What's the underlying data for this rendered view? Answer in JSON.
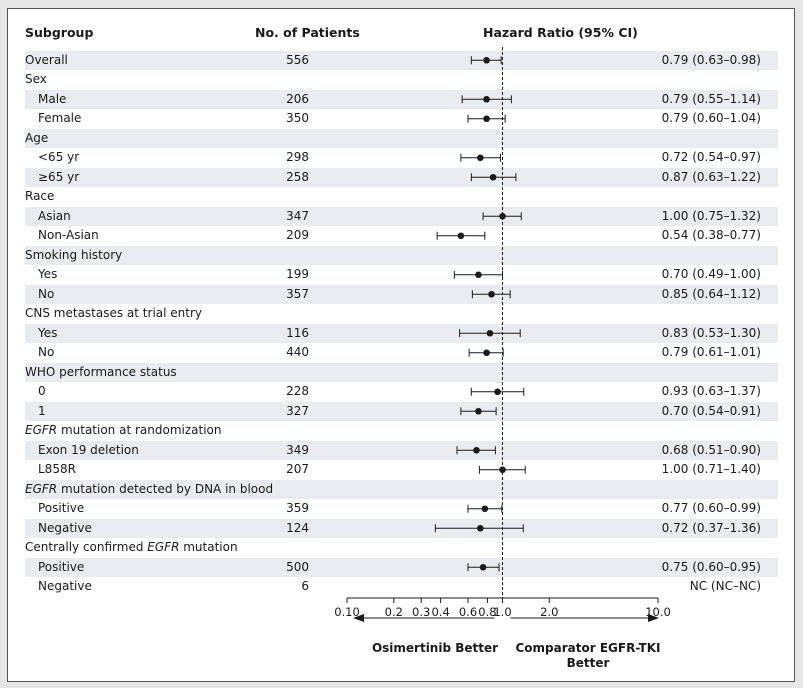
{
  "headers": {
    "subgroup": "Subgroup",
    "patients": "No. of Patients",
    "hazard": "Hazard Ratio (95% CI)"
  },
  "rows": [
    {
      "label": "Overall",
      "indent": false,
      "italic_prefix": "",
      "patients": "556",
      "hr_text": "0.79 (0.63–0.98)",
      "hr": 0.79,
      "lo": 0.63,
      "hi": 0.98,
      "band": true
    },
    {
      "label": "Sex",
      "indent": false,
      "italic_prefix": "",
      "patients": "",
      "hr_text": "",
      "hr": null,
      "lo": null,
      "hi": null,
      "band": false
    },
    {
      "label": "Male",
      "indent": true,
      "italic_prefix": "",
      "patients": "206",
      "hr_text": "0.79 (0.55–1.14)",
      "hr": 0.79,
      "lo": 0.55,
      "hi": 1.14,
      "band": true
    },
    {
      "label": "Female",
      "indent": true,
      "italic_prefix": "",
      "patients": "350",
      "hr_text": "0.79 (0.60–1.04)",
      "hr": 0.79,
      "lo": 0.6,
      "hi": 1.04,
      "band": false
    },
    {
      "label": "Age",
      "indent": false,
      "italic_prefix": "",
      "patients": "",
      "hr_text": "",
      "hr": null,
      "lo": null,
      "hi": null,
      "band": true
    },
    {
      "label": "<65 yr",
      "indent": true,
      "italic_prefix": "",
      "patients": "298",
      "hr_text": "0.72 (0.54–0.97)",
      "hr": 0.72,
      "lo": 0.54,
      "hi": 0.97,
      "band": false
    },
    {
      "label": "≥65 yr",
      "indent": true,
      "italic_prefix": "",
      "patients": "258",
      "hr_text": "0.87 (0.63–1.22)",
      "hr": 0.87,
      "lo": 0.63,
      "hi": 1.22,
      "band": true
    },
    {
      "label": "Race",
      "indent": false,
      "italic_prefix": "",
      "patients": "",
      "hr_text": "",
      "hr": null,
      "lo": null,
      "hi": null,
      "band": false
    },
    {
      "label": "Asian",
      "indent": true,
      "italic_prefix": "",
      "patients": "347",
      "hr_text": "1.00 (0.75–1.32)",
      "hr": 1.0,
      "lo": 0.75,
      "hi": 1.32,
      "band": true
    },
    {
      "label": "Non-Asian",
      "indent": true,
      "italic_prefix": "",
      "patients": "209",
      "hr_text": "0.54 (0.38–0.77)",
      "hr": 0.54,
      "lo": 0.38,
      "hi": 0.77,
      "band": false
    },
    {
      "label": "Smoking history",
      "indent": false,
      "italic_prefix": "",
      "patients": "",
      "hr_text": "",
      "hr": null,
      "lo": null,
      "hi": null,
      "band": true
    },
    {
      "label": "Yes",
      "indent": true,
      "italic_prefix": "",
      "patients": "199",
      "hr_text": "0.70 (0.49–1.00)",
      "hr": 0.7,
      "lo": 0.49,
      "hi": 1.0,
      "band": false
    },
    {
      "label": "No",
      "indent": true,
      "italic_prefix": "",
      "patients": "357",
      "hr_text": "0.85 (0.64–1.12)",
      "hr": 0.85,
      "lo": 0.64,
      "hi": 1.12,
      "band": true
    },
    {
      "label": "CNS metastases at trial entry",
      "indent": false,
      "italic_prefix": "",
      "patients": "",
      "hr_text": "",
      "hr": null,
      "lo": null,
      "hi": null,
      "band": false
    },
    {
      "label": "Yes",
      "indent": true,
      "italic_prefix": "",
      "patients": "116",
      "hr_text": "0.83 (0.53–1.30)",
      "hr": 0.83,
      "lo": 0.53,
      "hi": 1.3,
      "band": true
    },
    {
      "label": "No",
      "indent": true,
      "italic_prefix": "",
      "patients": "440",
      "hr_text": "0.79 (0.61–1.01)",
      "hr": 0.79,
      "lo": 0.61,
      "hi": 1.01,
      "band": false
    },
    {
      "label": "WHO performance status",
      "indent": false,
      "italic_prefix": "",
      "patients": "",
      "hr_text": "",
      "hr": null,
      "lo": null,
      "hi": null,
      "band": true
    },
    {
      "label": "0",
      "indent": true,
      "italic_prefix": "",
      "patients": "228",
      "hr_text": "0.93 (0.63–1.37)",
      "hr": 0.93,
      "lo": 0.63,
      "hi": 1.37,
      "band": false
    },
    {
      "label": "1",
      "indent": true,
      "italic_prefix": "",
      "patients": "327",
      "hr_text": "0.70 (0.54–0.91)",
      "hr": 0.7,
      "lo": 0.54,
      "hi": 0.91,
      "band": true
    },
    {
      "label": " mutation at randomization",
      "indent": false,
      "italic_prefix": "EGFR",
      "patients": "",
      "hr_text": "",
      "hr": null,
      "lo": null,
      "hi": null,
      "band": false
    },
    {
      "label": "Exon 19 deletion",
      "indent": true,
      "italic_prefix": "",
      "patients": "349",
      "hr_text": "0.68 (0.51–0.90)",
      "hr": 0.68,
      "lo": 0.51,
      "hi": 0.9,
      "band": true
    },
    {
      "label": "L858R",
      "indent": true,
      "italic_prefix": "",
      "patients": "207",
      "hr_text": "1.00 (0.71–1.40)",
      "hr": 1.0,
      "lo": 0.71,
      "hi": 1.4,
      "band": false
    },
    {
      "label": " mutation detected by DNA in blood",
      "indent": false,
      "italic_prefix": "EGFR",
      "patients": "",
      "hr_text": "",
      "hr": null,
      "lo": null,
      "hi": null,
      "band": true
    },
    {
      "label": "Positive",
      "indent": true,
      "italic_prefix": "",
      "patients": "359",
      "hr_text": "0.77 (0.60–0.99)",
      "hr": 0.77,
      "lo": 0.6,
      "hi": 0.99,
      "band": false
    },
    {
      "label": "Negative",
      "indent": true,
      "italic_prefix": "",
      "patients": "124",
      "hr_text": "0.72 (0.37–1.36)",
      "hr": 0.72,
      "lo": 0.37,
      "hi": 1.36,
      "band": true
    },
    {
      "label": "Centrally confirmed ",
      "indent": false,
      "italic_prefix": "",
      "italic_suffix": "EGFR",
      "tail": " mutation",
      "patients": "",
      "hr_text": "",
      "hr": null,
      "lo": null,
      "hi": null,
      "band": false
    },
    {
      "label": "Positive",
      "indent": true,
      "italic_prefix": "",
      "patients": "500",
      "hr_text": "0.75 (0.60–0.95)",
      "hr": 0.75,
      "lo": 0.6,
      "hi": 0.95,
      "band": true
    },
    {
      "label": "Negative",
      "indent": true,
      "italic_prefix": "",
      "patients": "6",
      "hr_text": "NC (NC–NC)",
      "hr": null,
      "lo": null,
      "hi": null,
      "band": false
    }
  ],
  "chart_data": {
    "type": "forest",
    "title": "Hazard Ratio (95% CI)",
    "xscale": "log",
    "xlim": [
      0.1,
      10.0
    ],
    "reference_line": 1.0,
    "ticks": [
      {
        "value": 0.1,
        "label": "0.10"
      },
      {
        "value": 0.2,
        "label": "0.2"
      },
      {
        "value": 0.3,
        "label": "0.3"
      },
      {
        "value": 0.4,
        "label": "0.4"
      },
      {
        "value": 0.6,
        "label": "0.6"
      },
      {
        "value": 0.8,
        "label": "0.8"
      },
      {
        "value": 1.0,
        "label": "1.0"
      },
      {
        "value": 2.0,
        "label": "2.0"
      },
      {
        "value": 10.0,
        "label": "10.0"
      }
    ],
    "left_label": "Osimertinib Better",
    "right_label": "Comparator EGFR-TKI Better"
  },
  "colors": {
    "band": "#e8ebef",
    "ink": "#1a1a1a",
    "frame": "#555555"
  }
}
